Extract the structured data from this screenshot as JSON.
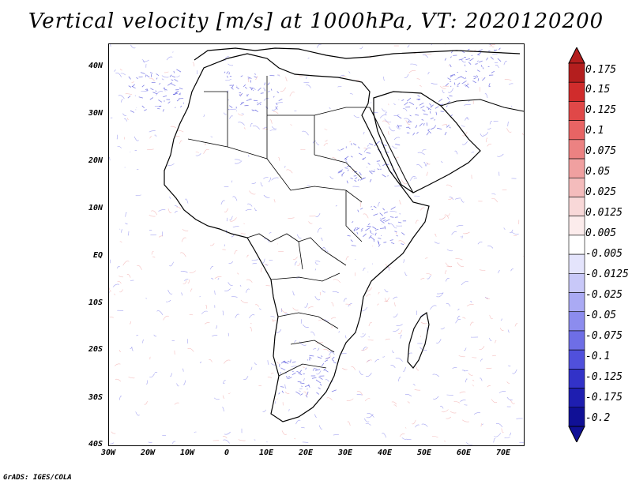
{
  "title": "Vertical velocity [m/s] at 1000hPa, VT: 2020120200",
  "footer": "GrADS: IGES/COLA",
  "lat_labels": [
    "40N",
    "30N",
    "20N",
    "10N",
    "EQ",
    "10S",
    "20S",
    "30S",
    "40S"
  ],
  "lon_labels": [
    "30W",
    "20W",
    "10W",
    "0",
    "10E",
    "20E",
    "30E",
    "40E",
    "50E",
    "60E",
    "70E"
  ],
  "colorbar": {
    "labels": [
      "0.175",
      "0.15",
      "0.125",
      "0.1",
      "0.075",
      "0.05",
      "0.025",
      "0.0125",
      "0.005",
      "-0.005",
      "-0.0125",
      "-0.025",
      "-0.05",
      "-0.075",
      "-0.1",
      "-0.125",
      "-0.175",
      "-0.2"
    ],
    "colors": [
      "#b41e1e",
      "#d02c2c",
      "#e04848",
      "#e86464",
      "#ec8282",
      "#f0a0a0",
      "#f4bcbc",
      "#f8d8d8",
      "#fcecec",
      "#ffffff",
      "#e4e4fc",
      "#c8c8f8",
      "#aaaaf4",
      "#8c8cee",
      "#6e6ee6",
      "#5050dc",
      "#3232c8",
      "#1e1eb0",
      "#101096"
    ]
  },
  "colors": {
    "coast": "#000000",
    "neg": "#5a5ae6",
    "pos": "#ec8a8a"
  }
}
